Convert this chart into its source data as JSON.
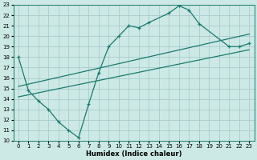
{
  "xlabel": "Humidex (Indice chaleur)",
  "background_color": "#cce9e5",
  "grid_color": "#aacccc",
  "line_color": "#1a7a6e",
  "xlim": [
    -0.5,
    23.5
  ],
  "ylim": [
    10,
    23
  ],
  "xticks": [
    0,
    1,
    2,
    3,
    4,
    5,
    6,
    7,
    8,
    9,
    10,
    11,
    12,
    13,
    14,
    15,
    16,
    17,
    18,
    19,
    20,
    21,
    22,
    23
  ],
  "yticks": [
    10,
    11,
    12,
    13,
    14,
    15,
    16,
    17,
    18,
    19,
    20,
    21,
    22,
    23
  ],
  "line1_x": [
    0,
    1,
    2,
    3,
    4,
    5,
    6,
    7,
    8,
    9,
    10,
    11,
    12,
    13,
    15,
    16,
    17,
    18,
    21,
    22,
    23
  ],
  "line1_y": [
    18,
    14.8,
    13.8,
    13,
    11.8,
    11,
    10.3,
    13.5,
    16.5,
    19,
    20,
    21,
    20.8,
    21.3,
    22.2,
    22.9,
    22.5,
    21.2,
    19.0,
    19.0,
    19.3
  ],
  "line2_x": [
    0,
    23
  ],
  "line2_y": [
    15.2,
    20.2
  ],
  "line3_x": [
    0,
    23
  ],
  "line3_y": [
    14.2,
    18.7
  ]
}
